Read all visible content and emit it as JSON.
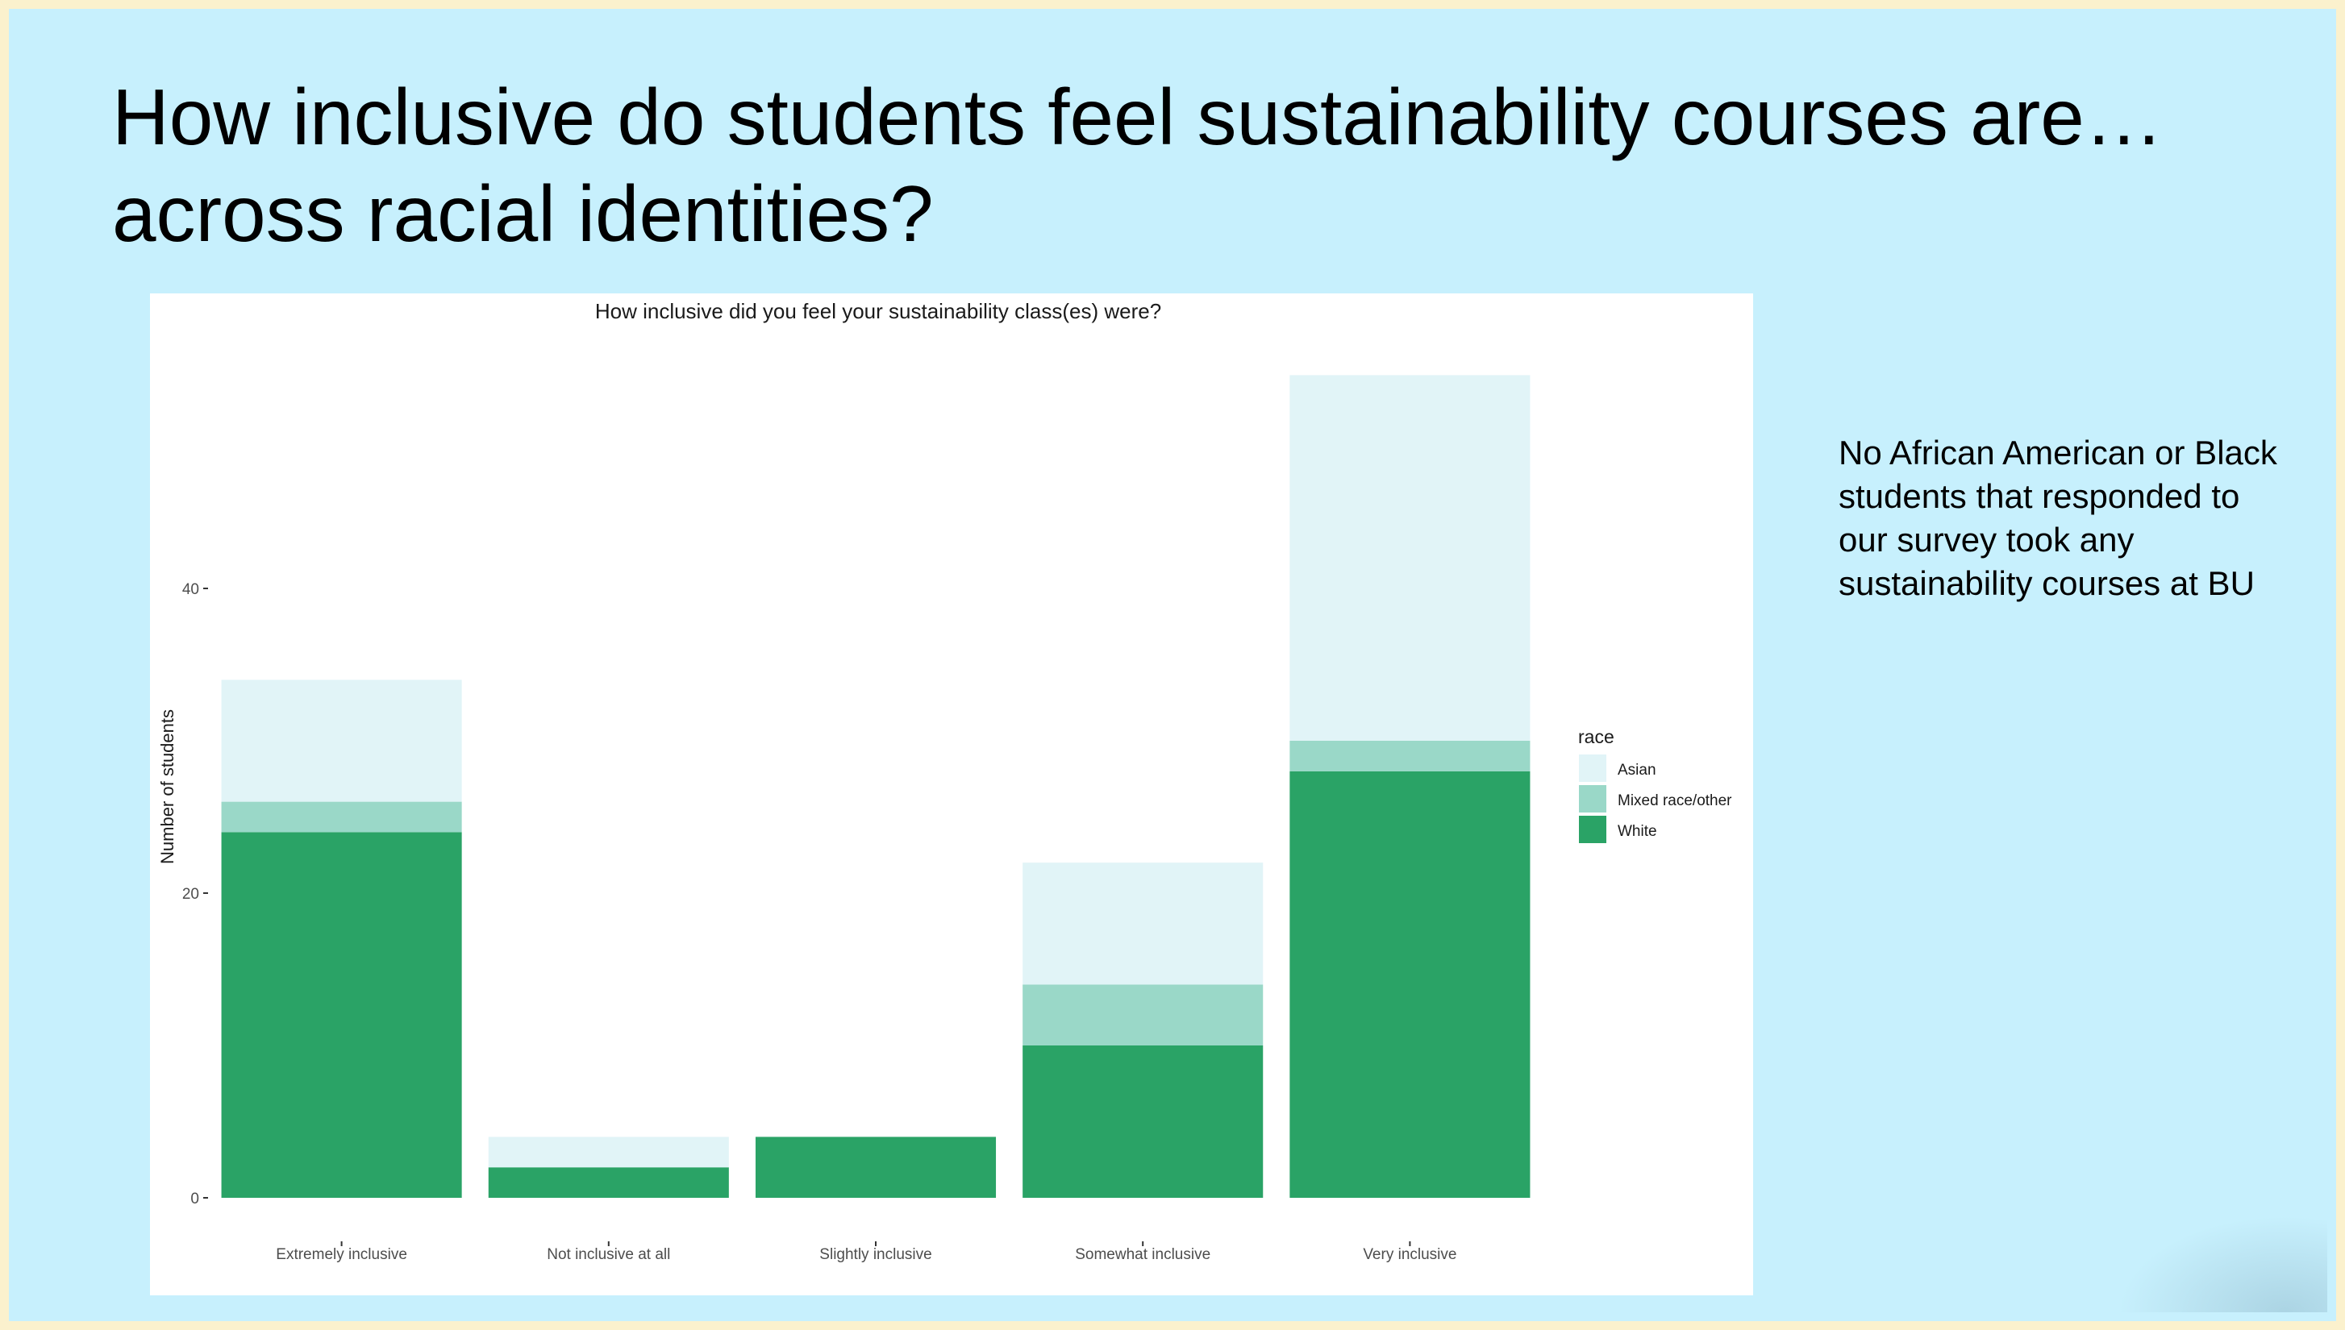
{
  "slide": {
    "title": "How inclusive do students feel sustainability courses are… across racial identities?",
    "side_note": "No African American or Black students that responded to our survey took any sustainability courses at BU"
  },
  "chart_data": {
    "type": "bar",
    "stacked": true,
    "title": "How inclusive did you feel your sustainability class(es) were?",
    "xlabel": "",
    "ylabel": "Number of students",
    "categories": [
      "Extremely inclusive",
      "Not inclusive at all",
      "Slightly inclusive",
      "Somewhat inclusive",
      "Very inclusive"
    ],
    "series": [
      {
        "name": "White",
        "values": [
          24,
          2,
          4,
          10,
          28
        ],
        "color": "#2aa366"
      },
      {
        "name": "Mixed race/other",
        "values": [
          2,
          0,
          0,
          4,
          2
        ],
        "color": "#9ad8c8"
      },
      {
        "name": "Asian",
        "values": [
          8,
          2,
          0,
          8,
          24
        ],
        "color": "#e1f4f7"
      }
    ],
    "legend_order": [
      "Asian",
      "Mixed race/other",
      "White"
    ],
    "legend_title": "race",
    "legend_position": "right",
    "yticks": [
      0,
      20,
      40
    ],
    "ylim": [
      0,
      57
    ],
    "grid": false
  }
}
